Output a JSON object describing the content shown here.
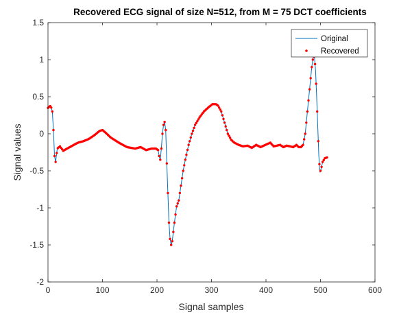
{
  "chart_data": {
    "type": "line",
    "title": "Recovered ECG signal of size N=512, from M = 75 DCT coefficients",
    "xlabel": "Signal samples",
    "ylabel": "Signal values",
    "xlim": [
      0,
      600
    ],
    "ylim": [
      -2,
      1.5
    ],
    "xticks": [
      0,
      100,
      200,
      300,
      400,
      500,
      600
    ],
    "yticks": [
      -2,
      -1.5,
      -1,
      -0.5,
      0,
      0.5,
      1,
      1.5
    ],
    "x_tick_labels": [
      "0",
      "100",
      "200",
      "300",
      "400",
      "500",
      "600"
    ],
    "y_tick_labels": [
      "-2",
      "-1.5",
      "-1",
      "-0.5",
      "0",
      "0.5",
      "1",
      "1.5"
    ],
    "grid": false,
    "legend_position": "top-right",
    "colors": {
      "original": "#0072bd",
      "recovered": "#ff0000",
      "axes": "#262626"
    },
    "series": [
      {
        "name": "Original",
        "style": "line",
        "knots": [
          [
            0,
            0.35
          ],
          [
            5,
            0.38
          ],
          [
            8,
            0.3
          ],
          [
            10,
            0.05
          ],
          [
            12,
            -0.3
          ],
          [
            14,
            -0.38
          ],
          [
            17,
            -0.2
          ],
          [
            22,
            -0.17
          ],
          [
            28,
            -0.23
          ],
          [
            35,
            -0.2
          ],
          [
            45,
            -0.16
          ],
          [
            55,
            -0.12
          ],
          [
            65,
            -0.1
          ],
          [
            75,
            -0.07
          ],
          [
            85,
            -0.02
          ],
          [
            95,
            0.04
          ],
          [
            100,
            0.05
          ],
          [
            105,
            0.02
          ],
          [
            115,
            -0.05
          ],
          [
            130,
            -0.12
          ],
          [
            145,
            -0.18
          ],
          [
            160,
            -0.2
          ],
          [
            170,
            -0.18
          ],
          [
            180,
            -0.22
          ],
          [
            190,
            -0.2
          ],
          [
            198,
            -0.2
          ],
          [
            202,
            -0.22
          ],
          [
            204,
            -0.3
          ],
          [
            206,
            -0.35
          ],
          [
            208,
            -0.2
          ],
          [
            210,
            0.0
          ],
          [
            212,
            0.12
          ],
          [
            214,
            0.16
          ],
          [
            216,
            0.05
          ],
          [
            218,
            -0.4
          ],
          [
            220,
            -0.8
          ],
          [
            222,
            -1.2
          ],
          [
            224,
            -1.42
          ],
          [
            226,
            -1.5
          ],
          [
            228,
            -1.45
          ],
          [
            232,
            -1.2
          ],
          [
            236,
            -0.98
          ],
          [
            240,
            -0.9
          ],
          [
            244,
            -0.7
          ],
          [
            248,
            -0.5
          ],
          [
            252,
            -0.35
          ],
          [
            258,
            -0.15
          ],
          [
            264,
            0.0
          ],
          [
            270,
            0.12
          ],
          [
            278,
            0.22
          ],
          [
            286,
            0.3
          ],
          [
            295,
            0.36
          ],
          [
            302,
            0.4
          ],
          [
            308,
            0.4
          ],
          [
            312,
            0.38
          ],
          [
            318,
            0.3
          ],
          [
            324,
            0.15
          ],
          [
            330,
            0.0
          ],
          [
            336,
            -0.08
          ],
          [
            342,
            -0.12
          ],
          [
            350,
            -0.15
          ],
          [
            358,
            -0.17
          ],
          [
            366,
            -0.16
          ],
          [
            374,
            -0.19
          ],
          [
            382,
            -0.15
          ],
          [
            390,
            -0.18
          ],
          [
            396,
            -0.16
          ],
          [
            402,
            -0.14
          ],
          [
            408,
            -0.12
          ],
          [
            414,
            -0.17
          ],
          [
            420,
            -0.16
          ],
          [
            426,
            -0.15
          ],
          [
            432,
            -0.18
          ],
          [
            438,
            -0.16
          ],
          [
            444,
            -0.17
          ],
          [
            450,
            -0.18
          ],
          [
            456,
            -0.15
          ],
          [
            460,
            -0.18
          ],
          [
            464,
            -0.18
          ],
          [
            468,
            -0.15
          ],
          [
            472,
            0.0
          ],
          [
            476,
            0.3
          ],
          [
            480,
            0.6
          ],
          [
            484,
            0.9
          ],
          [
            487,
            1.05
          ],
          [
            489,
            1.03
          ],
          [
            491,
            0.85
          ],
          [
            493,
            0.5
          ],
          [
            495,
            0.1
          ],
          [
            497,
            -0.3
          ],
          [
            499,
            -0.52
          ],
          [
            501,
            -0.48
          ],
          [
            504,
            -0.38
          ],
          [
            508,
            -0.33
          ],
          [
            512,
            -0.32
          ]
        ]
      },
      {
        "name": "Recovered",
        "style": "markers",
        "sample_step": 2,
        "sample_range": [
          0,
          512
        ]
      }
    ]
  }
}
